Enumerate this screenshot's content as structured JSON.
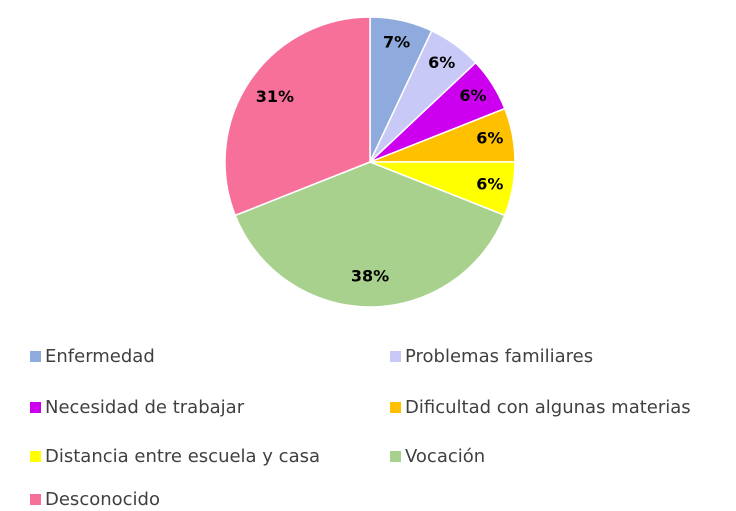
{
  "chart_data": {
    "type": "pie",
    "categories": [
      "Enfermedad",
      "Problemas familiares",
      "Necesidad de trabajar",
      "Dificultad con algunas materias",
      "Distancia entre escuela y casa",
      "Vocación",
      "Desconocido"
    ],
    "values": [
      7,
      6,
      6,
      6,
      6,
      38,
      31
    ],
    "value_labels": [
      "7%",
      "6%",
      "6%",
      "6%",
      "6%",
      "38%",
      "31%"
    ],
    "colors": [
      "#8faadc",
      "#c9c9f7",
      "#cc00ee",
      "#ffc000",
      "#ffff00",
      "#a9d18e",
      "#f7709a"
    ],
    "legend": "bottom"
  }
}
